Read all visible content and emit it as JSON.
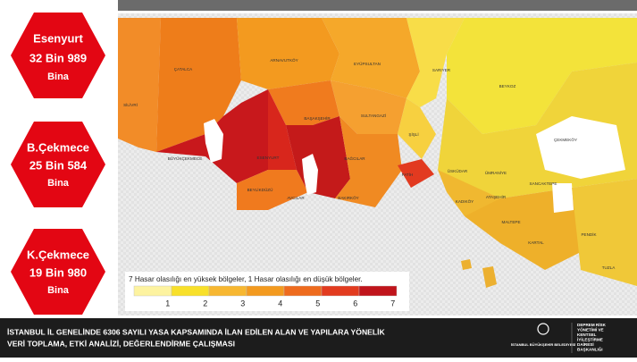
{
  "badges": [
    {
      "district": "Esenyurt",
      "count": "32 Bin 989",
      "unit": "Bina"
    },
    {
      "district": "B.Çekmece",
      "count": "25 Bin 584",
      "unit": "Bina"
    },
    {
      "district": "K.Çekmece",
      "count": "19 Bin 980",
      "unit": "Bina"
    }
  ],
  "map": {
    "districts": [
      "ÇATALCA",
      "SİLİVRİ",
      "ARNAVUTKÖY",
      "EYÜPSULTAN",
      "SARIYER",
      "BEYKOZ",
      "ÇEKMEKÖY",
      "BAŞAKŞEHİR",
      "SULTANGAZİ",
      "BÜYÜKÇEKMECE",
      "ESENYURT",
      "BAĞCILAR",
      "BEYLİKDÜZÜ",
      "AVCILAR",
      "BAKIRKÖY",
      "FATİH",
      "ŞİŞLİ",
      "ÜSKÜDAR",
      "ÜMRANİYE",
      "SANCAKTEPE",
      "ATAŞEHİR",
      "KADIKÖY",
      "MALTEPE",
      "KARTAL",
      "PENDİK",
      "TUZLA"
    ]
  },
  "legend": {
    "title": "7 Hasar olasılığı en yüksek bölgeler, 1 Hasar olasılığı en düşük bölgeler.",
    "levels": [
      1,
      2,
      3,
      4,
      5,
      6,
      7
    ],
    "colors": [
      "#fdf3a0",
      "#f8e02a",
      "#f7b731",
      "#f39a1f",
      "#ee6b1e",
      "#e23b1f",
      "#c0141b"
    ]
  },
  "footer": {
    "lines": [
      "İSTANBUL İL GENELİNDE 6306 SAYILI YASA KAPSAMINDA İLAN EDİLEN ALAN VE YAPILARA YÖNELİK",
      "VERİ TOPLAMA, ETKİ ANALİZİ, DEĞERLENDİRME ÇALIŞMASI"
    ],
    "logo": "İSTANBUL BÜYÜKŞEHİR BELEDİYESİ",
    "agency": [
      "DEPREM RİSK",
      "YÖNETİMİ VE",
      "KENTSEL",
      "İYİLEŞTİRME",
      "DAİRESİ",
      "BAŞKANLIĞI"
    ]
  }
}
